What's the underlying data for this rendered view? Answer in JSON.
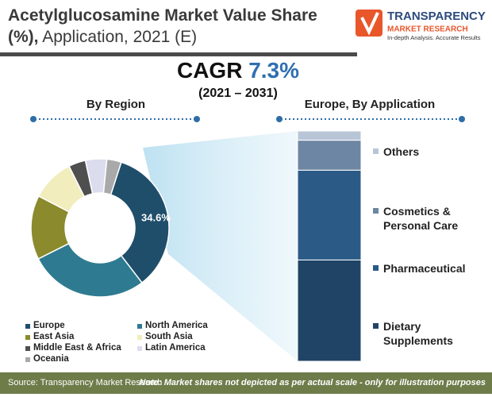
{
  "header": {
    "title_bold": "Acetylglucosamine Market Value Share (%),",
    "title_rest": "Application, 2021 (E)",
    "logo_name": "TRANSPARENCY",
    "logo_sub": "MARKET RESEARCH",
    "logo_tagline": "In-depth Analysis. Accurate Results"
  },
  "cagr": {
    "label": "CAGR",
    "value": "7.3%",
    "period": "(2021 – 2031)"
  },
  "chart_data": [
    {
      "type": "donut",
      "title": "By Region",
      "categories": [
        "Europe",
        "North America",
        "East Asia",
        "South Asia",
        "Middle East & Africa",
        "Latin America",
        "Oceania"
      ],
      "values": [
        34.6,
        28,
        15,
        10,
        4,
        5,
        3.4
      ],
      "value_labels": [
        "34.6%",
        null,
        null,
        null,
        null,
        null,
        null
      ],
      "colors": [
        "#1f4e6b",
        "#2e7b91",
        "#8b8a2c",
        "#f1edbd",
        "#4f4f4f",
        "#dcdcef",
        "#a9a9a9"
      ]
    },
    {
      "type": "stacked_bar",
      "title": "Europe, By Application",
      "series": [
        {
          "name": "Dietary Supplements",
          "color": "#1f4466",
          "values": [
            44
          ]
        },
        {
          "name": "Pharmaceutical",
          "color": "#2b5a86",
          "values": [
            39
          ]
        },
        {
          "name": "Cosmetics & Personal Care",
          "color": "#6d86a3",
          "values": [
            13
          ]
        },
        {
          "name": "Others",
          "color": "#b8c5d6",
          "values": [
            4
          ]
        }
      ]
    }
  ],
  "footer": {
    "source": "Source: Transparency Market Research",
    "note": "Note: Market shares not depicted as per actual scale - only for illustration purposes"
  }
}
